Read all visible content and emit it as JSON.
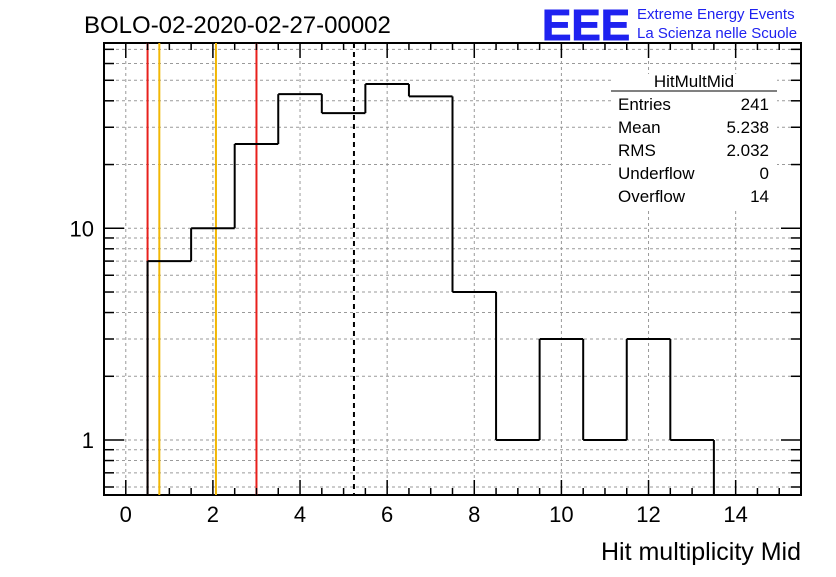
{
  "chart_data": {
    "type": "histogram",
    "title": "BOLO-02-2020-02-27-00002",
    "xlabel": "Hit multiplicity Mid",
    "ylabel": "",
    "xlim": [
      -0.5,
      15.5
    ],
    "ylim": [
      0.55,
      75
    ],
    "y_scale": "log",
    "grid": true,
    "x_ticks": [
      "0",
      "2",
      "4",
      "6",
      "8",
      "10",
      "12",
      "14"
    ],
    "y_ticks": [
      "1",
      "10"
    ],
    "bins": [
      {
        "low": 0.5,
        "high": 1.5,
        "count": 7
      },
      {
        "low": 1.5,
        "high": 2.5,
        "count": 10
      },
      {
        "low": 2.5,
        "high": 3.5,
        "count": 25
      },
      {
        "low": 3.5,
        "high": 4.5,
        "count": 43
      },
      {
        "low": 4.5,
        "high": 5.5,
        "count": 35
      },
      {
        "low": 5.5,
        "high": 6.5,
        "count": 48
      },
      {
        "low": 6.5,
        "high": 7.5,
        "count": 42
      },
      {
        "low": 7.5,
        "high": 8.5,
        "count": 5
      },
      {
        "low": 8.5,
        "high": 9.5,
        "count": 1
      },
      {
        "low": 9.5,
        "high": 10.5,
        "count": 3
      },
      {
        "low": 10.5,
        "high": 11.5,
        "count": 1
      },
      {
        "low": 11.5,
        "high": 12.5,
        "count": 3
      },
      {
        "low": 12.5,
        "high": 13.5,
        "count": 1
      }
    ],
    "vertical_lines": [
      {
        "x": 0.5,
        "color": "#e8201c",
        "style": "solid"
      },
      {
        "x": 0.77,
        "color": "#f2b705",
        "style": "solid"
      },
      {
        "x": 2.07,
        "color": "#f2b705",
        "style": "solid"
      },
      {
        "x": 3.0,
        "color": "#e8201c",
        "style": "solid"
      },
      {
        "x": 5.238,
        "color": "#000000",
        "style": "dashed"
      }
    ],
    "stats_box": {
      "title": "HitMultMid",
      "rows": [
        {
          "label": "Entries",
          "value": "241"
        },
        {
          "label": "Mean",
          "value": "5.238"
        },
        {
          "label": "RMS",
          "value": "2.032"
        },
        {
          "label": "Underflow",
          "value": "0"
        },
        {
          "label": "Overflow",
          "value": "14"
        }
      ]
    }
  },
  "logo": {
    "text": "EEE",
    "line1": "Extreme Energy Events",
    "line2": "La Scienza nelle Scuole",
    "color": "#1f22f0"
  }
}
